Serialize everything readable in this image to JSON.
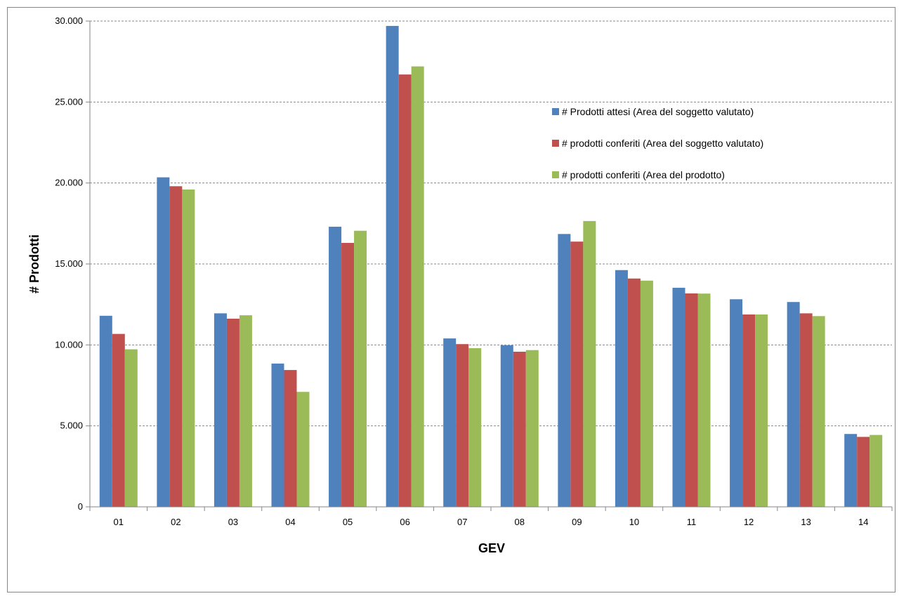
{
  "chart_data": {
    "type": "bar",
    "title": "",
    "xlabel": "GEV",
    "ylabel": "# Prodotti",
    "ylim": [
      0,
      30000
    ],
    "yticks": [
      0,
      5000,
      10000,
      15000,
      20000,
      25000,
      30000
    ],
    "ytick_labels": [
      "0",
      "5.000",
      "10.000",
      "15.000",
      "20.000",
      "25.000",
      "30.000"
    ],
    "grid": "horizontal-dashed",
    "legend_position": "top-right",
    "categories": [
      "01",
      "02",
      "03",
      "04",
      "05",
      "06",
      "07",
      "08",
      "09",
      "10",
      "11",
      "12",
      "13",
      "14"
    ],
    "series": [
      {
        "name": "# Prodotti attesi (Area del soggetto valutato)",
        "color": "#4F81BD",
        "values": [
          11800,
          20350,
          11950,
          8850,
          17300,
          29700,
          10400,
          9980,
          16850,
          14620,
          13530,
          12820,
          12650,
          4500
        ]
      },
      {
        "name": "# prodotti conferiti (Area del soggetto valutato)",
        "color": "#C0504D",
        "values": [
          10680,
          19800,
          11620,
          8450,
          16300,
          26700,
          10050,
          9580,
          16380,
          14100,
          13180,
          11880,
          11950,
          4320
        ]
      },
      {
        "name": "# prodotti conferiti (Area del prodotto)",
        "color": "#9BBB59",
        "values": [
          9730,
          19600,
          11830,
          7100,
          17050,
          27200,
          9800,
          9680,
          17650,
          13970,
          13170,
          11880,
          11780,
          4440
        ]
      }
    ]
  }
}
